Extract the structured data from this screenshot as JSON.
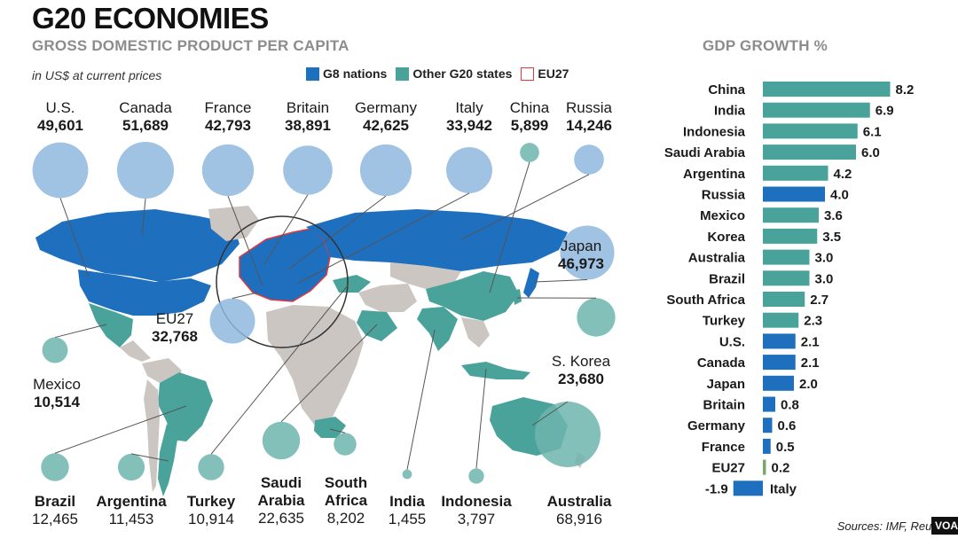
{
  "title": "G20 ECONOMIES",
  "subtitle": "GROSS DOMESTIC PRODUCT PER CAPITA",
  "units": "in US$ at current prices",
  "legend": [
    {
      "label": "G8 nations",
      "color": "#1f6fbf"
    },
    {
      "label": "Other G20 states",
      "color": "#4aa39a"
    },
    {
      "label": "EU27",
      "color": "#e0393e"
    }
  ],
  "gdp_top": [
    {
      "name": "U.S.",
      "value": "49,601"
    },
    {
      "name": "Canada",
      "value": "51,689"
    },
    {
      "name": "France",
      "value": "42,793"
    },
    {
      "name": "Britain",
      "value": "38,891"
    },
    {
      "name": "Germany",
      "value": "42,625"
    },
    {
      "name": "Italy",
      "value": "33,942"
    },
    {
      "name": "China",
      "value": "5,899"
    },
    {
      "name": "Russia",
      "value": "14,246"
    }
  ],
  "gdp_side": [
    {
      "name": "Japan",
      "value": "46,973"
    },
    {
      "name": "EU27",
      "value": "32,768"
    },
    {
      "name": "Mexico",
      "value": "10,514"
    },
    {
      "name": "S. Korea",
      "value": "23,680"
    }
  ],
  "gdp_bottom": [
    {
      "name": "Brazil",
      "value": "12,465"
    },
    {
      "name": "Argentina",
      "value": "11,453"
    },
    {
      "name": "Turkey",
      "value": "10,914"
    },
    {
      "name": "Saudi Arabia",
      "value": "22,635"
    },
    {
      "name": "South Africa",
      "value": "8,202"
    },
    {
      "name": "India",
      "value": "1,455"
    },
    {
      "name": "Indonesia",
      "value": "3,797"
    },
    {
      "name": "Australia",
      "value": "68,916"
    }
  ],
  "chart_data": [
    {
      "type": "bubble",
      "title": "GROSS DOMESTIC PRODUCT PER CAPITA",
      "subtitle": "in US$ at current prices",
      "categories": [
        "U.S.",
        "Canada",
        "France",
        "Britain",
        "Germany",
        "Italy",
        "China",
        "Russia",
        "Japan",
        "EU27",
        "Mexico",
        "S. Korea",
        "Brazil",
        "Argentina",
        "Turkey",
        "Saudi Arabia",
        "South Africa",
        "India",
        "Indonesia",
        "Australia"
      ],
      "values": [
        49601,
        51689,
        42793,
        38891,
        42625,
        33942,
        5899,
        14246,
        46973,
        32768,
        10514,
        23680,
        12465,
        11453,
        10914,
        22635,
        8202,
        1455,
        3797,
        68916
      ],
      "groups": [
        "G8",
        "G8",
        "G8",
        "G8",
        "G8",
        "G8",
        "Other",
        "G8",
        "G8",
        "EU27",
        "Other",
        "Other",
        "Other",
        "Other",
        "Other",
        "Other",
        "Other",
        "Other",
        "Other",
        "Other"
      ]
    },
    {
      "type": "bar",
      "title": "GDP GROWTH %",
      "categories": [
        "China",
        "India",
        "Indonesia",
        "Saudi Arabia",
        "Argentina",
        "Russia",
        "Mexico",
        "Korea",
        "Australia",
        "Brazil",
        "South Africa",
        "Turkey",
        "U.S.",
        "Canada",
        "Japan",
        "Britain",
        "Germany",
        "France",
        "EU27",
        "Italy"
      ],
      "values": [
        8.2,
        6.9,
        6.1,
        6.0,
        4.2,
        4.0,
        3.6,
        3.5,
        3.0,
        3.0,
        2.7,
        2.3,
        2.1,
        2.1,
        2.0,
        0.8,
        0.6,
        0.5,
        0.2,
        -1.9
      ],
      "value_labels": [
        "8.2",
        "6.9",
        "6.1",
        "6.0",
        "4.2",
        "4.0",
        "3.6",
        "3.5",
        "3.0",
        "3.0",
        "2.7",
        "2.3",
        "2.1",
        "2.1",
        "2.0",
        "0.8",
        "0.6",
        "0.5",
        "0.2",
        "-1.9"
      ],
      "groups": [
        "Other",
        "Other",
        "Other",
        "Other",
        "Other",
        "G8",
        "Other",
        "Other",
        "Other",
        "Other",
        "Other",
        "Other",
        "G8",
        "G8",
        "G8",
        "G8",
        "G8",
        "G8",
        "EU27",
        "G8"
      ]
    }
  ],
  "source": "Sources: IMF, Reut",
  "badge": "VOA"
}
